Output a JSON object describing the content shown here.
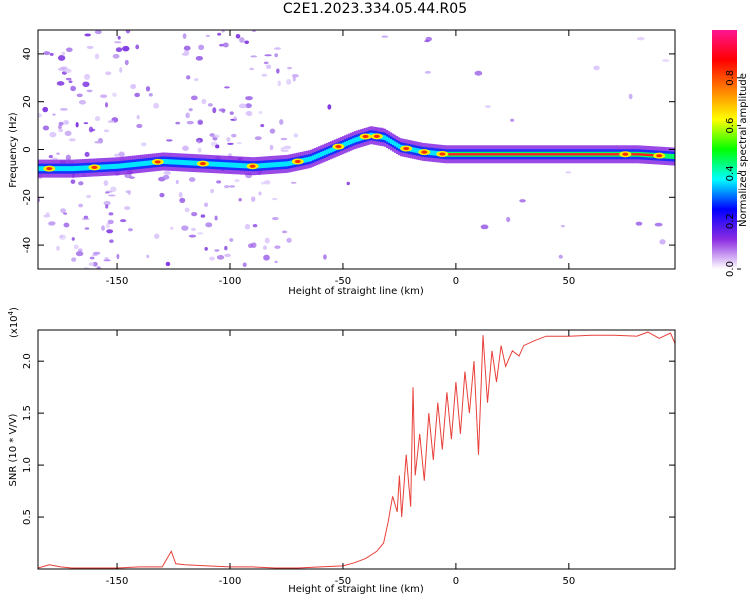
{
  "title": "C2E1.2023.334.05.44.R05",
  "chart_data": [
    {
      "type": "heatmap",
      "name": "spectrogram",
      "xlabel": "Height of straight line (km)",
      "ylabel": "Frequency (Hz)",
      "xlim": [
        -185,
        97
      ],
      "ylim": [
        -50,
        50
      ],
      "xticks": [
        -150,
        -100,
        -50,
        0,
        50
      ],
      "yticks": [
        -40,
        -20,
        0,
        20,
        40
      ],
      "colorbar": {
        "label": "Normalized spectral amplitude",
        "range": [
          0.0,
          1.0
        ],
        "ticks": [
          0.0,
          0.2,
          0.4,
          0.6,
          0.8
        ],
        "colormap": [
          "#ffffff",
          "#8a2be2",
          "#0000ff",
          "#00ffff",
          "#00ff00",
          "#ffff00",
          "#ff8000",
          "#ff0000",
          "#ff1493"
        ]
      },
      "ridge_line": {
        "x": [
          -185,
          -170,
          -150,
          -130,
          -110,
          -90,
          -75,
          -65,
          -55,
          -45,
          -38,
          -32,
          -25,
          -15,
          -5,
          0,
          20,
          40,
          60,
          80,
          97
        ],
        "y": [
          -8,
          -8,
          -7,
          -5,
          -6,
          -7,
          -6,
          -4,
          0,
          4,
          6,
          5,
          1,
          -1,
          -2,
          -2,
          -2,
          -2,
          -2,
          -2,
          -3
        ]
      }
    },
    {
      "type": "line",
      "name": "snr",
      "xlabel": "Height of straight line (km)",
      "ylabel": "SNR (10 * V/V)",
      "y_multiplier": "(x10",
      "y_multiplier_exp": "4",
      "y_multiplier_close": ")",
      "xlim": [
        -185,
        97
      ],
      "ylim": [
        0,
        2.3
      ],
      "xticks": [
        -150,
        -100,
        -50,
        0,
        50
      ],
      "yticks": [
        0.5,
        1.0,
        1.5,
        2.0
      ],
      "ytick_labels": [
        "0.5",
        "1.0",
        "1.5",
        "2.0"
      ],
      "line_color": "#e8403a",
      "series": [
        {
          "x": [
            -185,
            -180,
            -175,
            -170,
            -160,
            -150,
            -140,
            -130,
            -126,
            -124,
            -120,
            -110,
            -100,
            -90,
            -80,
            -70,
            -60,
            -50,
            -45,
            -40,
            -35,
            -32,
            -30,
            -28,
            -26,
            -25,
            -24,
            -22,
            -20,
            -19,
            -18,
            -16,
            -14,
            -12,
            -10,
            -8,
            -6,
            -4,
            -2,
            0,
            2,
            4,
            6,
            8,
            10,
            12,
            14,
            16,
            18,
            20,
            22,
            25,
            28,
            30,
            35,
            40,
            50,
            60,
            70,
            80,
            85,
            90,
            95,
            97
          ],
          "y": [
            0.01,
            0.04,
            0.02,
            0.01,
            0.01,
            0.01,
            0.02,
            0.02,
            0.17,
            0.05,
            0.04,
            0.03,
            0.02,
            0.02,
            0.01,
            0.01,
            0.02,
            0.03,
            0.06,
            0.1,
            0.17,
            0.25,
            0.45,
            0.7,
            0.55,
            0.9,
            0.5,
            1.1,
            0.6,
            1.75,
            0.9,
            1.3,
            0.85,
            1.5,
            1.05,
            1.6,
            1.15,
            1.7,
            1.25,
            1.8,
            1.3,
            1.9,
            1.5,
            2.0,
            1.1,
            2.25,
            1.6,
            2.1,
            1.8,
            2.15,
            1.95,
            2.1,
            2.05,
            2.15,
            2.2,
            2.24,
            2.24,
            2.25,
            2.25,
            2.24,
            2.28,
            2.22,
            2.27,
            2.17
          ]
        }
      ]
    }
  ]
}
